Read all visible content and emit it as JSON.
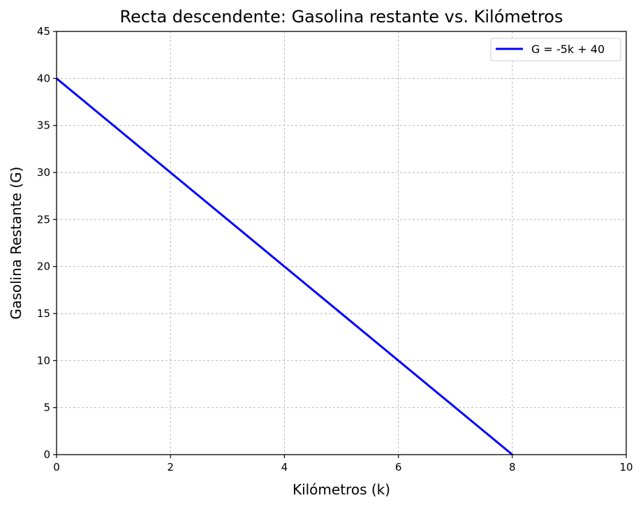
{
  "chart_data": {
    "type": "line",
    "title": "Recta descendente: Gasolina restante vs. Kilómetros",
    "xlabel": "Kilómetros (k)",
    "ylabel": "Gasolina Restante (G)",
    "xlim": [
      0,
      10
    ],
    "ylim": [
      0,
      45
    ],
    "xticks": [
      0,
      2,
      4,
      6,
      8,
      10
    ],
    "yticks": [
      0,
      5,
      10,
      15,
      20,
      25,
      30,
      35,
      40,
      45
    ],
    "grid": true,
    "legend_position": "top-right",
    "series": [
      {
        "name": "G = -5k + 40",
        "color": "#0000ff",
        "x": [
          0,
          8
        ],
        "y": [
          40,
          0
        ]
      }
    ]
  }
}
